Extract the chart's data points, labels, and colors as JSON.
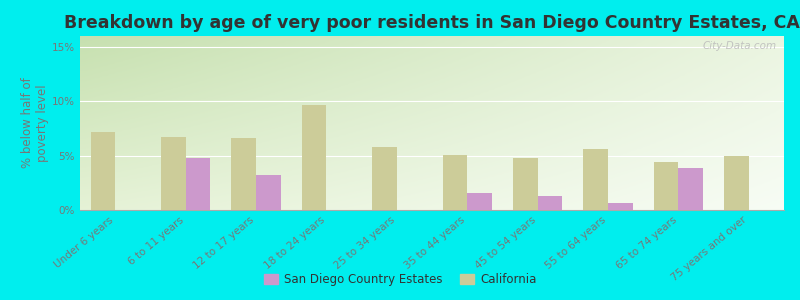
{
  "title": "Breakdown by age of very poor residents in San Diego Country Estates, CA",
  "ylabel": "% below half of\npoverty level",
  "categories": [
    "Under 6 years",
    "6 to 11 years",
    "12 to 17 years",
    "18 to 24 years",
    "25 to 34 years",
    "35 to 44 years",
    "45 to 54 years",
    "55 to 64 years",
    "65 to 74 years",
    "75 years and over"
  ],
  "sdce_values": [
    0,
    4.8,
    3.2,
    0,
    0,
    1.6,
    1.3,
    0.6,
    3.9,
    0
  ],
  "ca_values": [
    7.2,
    6.7,
    6.6,
    9.7,
    5.8,
    5.1,
    4.8,
    5.6,
    4.4,
    5.0
  ],
  "sdce_color": "#cc99cc",
  "ca_color": "#cccc99",
  "background_color": "#00eeee",
  "ylim": [
    0,
    16
  ],
  "yticks": [
    0,
    5,
    10,
    15
  ],
  "ytick_labels": [
    "0%",
    "5%",
    "10%",
    "15%"
  ],
  "title_fontsize": 12.5,
  "axis_label_fontsize": 8.5,
  "tick_fontsize": 7.5,
  "legend_label_sdce": "San Diego Country Estates",
  "legend_label_ca": "California",
  "watermark": "City-Data.com"
}
